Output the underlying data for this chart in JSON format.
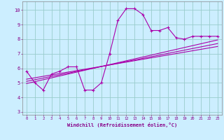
{
  "xlabel": "Windchill (Refroidissement éolien,°C)",
  "bg_color": "#cceeff",
  "line_color": "#aa00aa",
  "grid_color": "#99cccc",
  "axis_color": "#880088",
  "spine_color": "#888888",
  "xlim": [
    -0.5,
    23.5
  ],
  "ylim": [
    2.8,
    10.6
  ],
  "xticks": [
    0,
    1,
    2,
    3,
    4,
    5,
    6,
    7,
    8,
    9,
    10,
    11,
    12,
    13,
    14,
    15,
    16,
    17,
    18,
    19,
    20,
    21,
    22,
    23
  ],
  "yticks": [
    3,
    4,
    5,
    6,
    7,
    8,
    9,
    10
  ],
  "main_x": [
    0,
    1,
    2,
    3,
    4,
    5,
    6,
    7,
    8,
    9,
    10,
    11,
    12,
    13,
    14,
    15,
    16,
    17,
    18,
    19,
    20,
    21,
    22,
    23
  ],
  "main_y": [
    5.8,
    5.0,
    4.5,
    5.6,
    5.8,
    6.1,
    6.1,
    4.5,
    4.5,
    5.0,
    7.0,
    9.3,
    10.1,
    10.1,
    9.7,
    8.6,
    8.6,
    8.8,
    8.1,
    8.0,
    8.2,
    8.2,
    8.2,
    8.2
  ],
  "trend1_x": [
    0,
    23
  ],
  "trend1_y": [
    4.95,
    7.95
  ],
  "trend2_x": [
    0,
    23
  ],
  "trend2_y": [
    5.1,
    7.7
  ],
  "trend3_x": [
    0,
    23
  ],
  "trend3_y": [
    5.25,
    7.5
  ],
  "marker_size": 2.5,
  "linewidth": 0.8
}
